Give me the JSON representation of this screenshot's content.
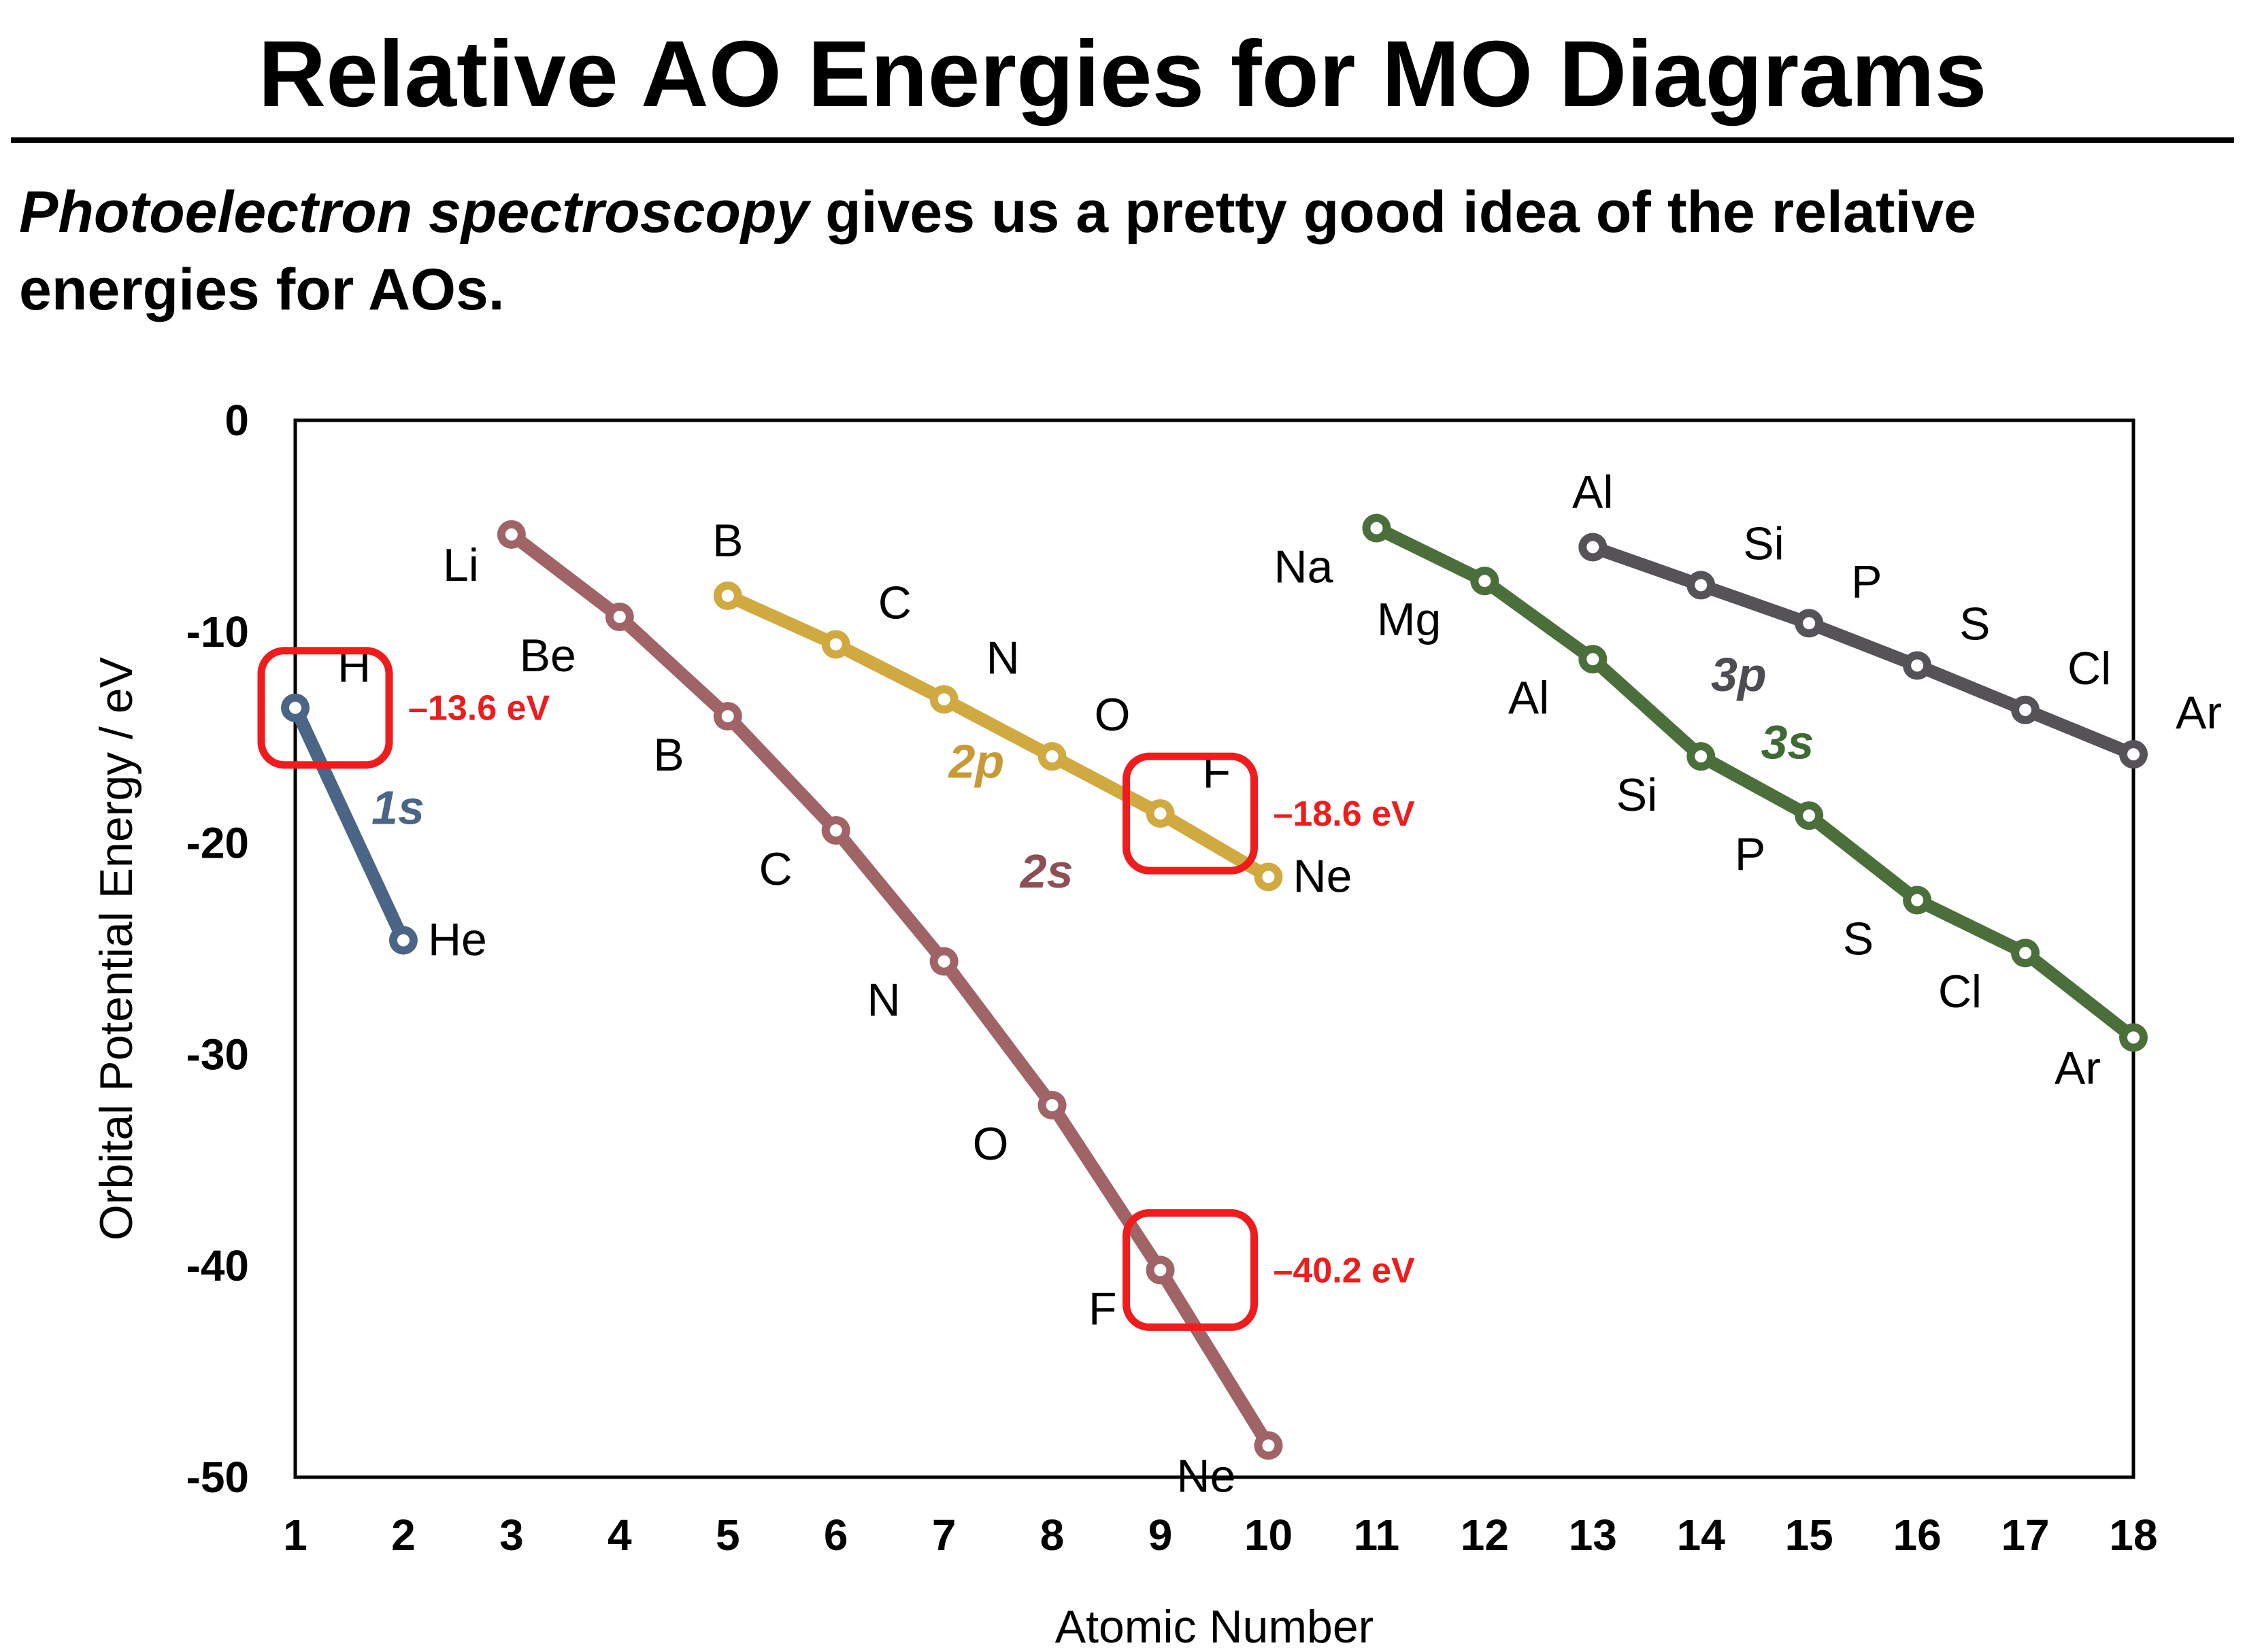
{
  "page": {
    "title": "Relative AO Energies for MO Diagrams",
    "intro_emphasis": "Photoelectron spectroscopy",
    "intro_rest": " gives us a pretty good idea of the relative energies for AOs."
  },
  "chart_data": {
    "type": "line",
    "xlabel": "Atomic Number",
    "ylabel": "Orbital Potential Energy / eV",
    "xlim": [
      1,
      18
    ],
    "ylim": [
      -50,
      0
    ],
    "xticks": [
      "1",
      "2",
      "3",
      "4",
      "5",
      "6",
      "7",
      "8",
      "9",
      "10",
      "11",
      "12",
      "13",
      "14",
      "15",
      "16",
      "17",
      "18"
    ],
    "yticks": [
      "0",
      "-10",
      "-20",
      "-30",
      "-40",
      "-50"
    ],
    "grid": false,
    "series": [
      {
        "name": "1s",
        "color": "#4a6585",
        "label_color": "#4a6585",
        "points": [
          {
            "el": "H",
            "x": 1,
            "y": -13.6,
            "pos": "ne"
          },
          {
            "el": "He",
            "x": 2,
            "y": -24.6,
            "pos": "e"
          }
        ]
      },
      {
        "name": "2s",
        "color": "#a06466",
        "label_color": "#8c4f55",
        "points": [
          {
            "el": "Li",
            "x": 3,
            "y": -5.4,
            "pos": "w"
          },
          {
            "el": "Be",
            "x": 4,
            "y": -9.3,
            "pos": "sw"
          },
          {
            "el": "B",
            "x": 5,
            "y": -14.0,
            "pos": "sw"
          },
          {
            "el": "C",
            "x": 6,
            "y": -19.4,
            "pos": "sw"
          },
          {
            "el": "N",
            "x": 7,
            "y": -25.6,
            "pos": "sw"
          },
          {
            "el": "O",
            "x": 8,
            "y": -32.4,
            "pos": "sw"
          },
          {
            "el": "F",
            "x": 9,
            "y": -40.2,
            "pos": "sw"
          },
          {
            "el": "Ne",
            "x": 10,
            "y": -48.5,
            "pos": "w"
          }
        ]
      },
      {
        "name": "2p",
        "color": "#d0aa40",
        "label_color": "#c89a35",
        "points": [
          {
            "el": "B",
            "x": 5,
            "y": -8.3,
            "pos": "n"
          },
          {
            "el": "C",
            "x": 6,
            "y": -10.6,
            "pos": "ne"
          },
          {
            "el": "N",
            "x": 7,
            "y": -13.2,
            "pos": "ne"
          },
          {
            "el": "O",
            "x": 8,
            "y": -15.9,
            "pos": "ne"
          },
          {
            "el": "F",
            "x": 9,
            "y": -18.6,
            "pos": "ne"
          },
          {
            "el": "Ne",
            "x": 10,
            "y": -21.6,
            "pos": "e"
          }
        ]
      },
      {
        "name": "3s",
        "color": "#4b6f3a",
        "label_color": "#3f6a35",
        "points": [
          {
            "el": "Na",
            "x": 11,
            "y": -5.1,
            "pos": "sw"
          },
          {
            "el": "Mg",
            "x": 12,
            "y": -7.6,
            "pos": "sw"
          },
          {
            "el": "Al",
            "x": 13,
            "y": -11.3,
            "pos": "sw"
          },
          {
            "el": "Si",
            "x": 14,
            "y": -15.9,
            "pos": "sw"
          },
          {
            "el": "P",
            "x": 15,
            "y": -18.7,
            "pos": "sw"
          },
          {
            "el": "S",
            "x": 16,
            "y": -22.7,
            "pos": "sw"
          },
          {
            "el": "Cl",
            "x": 17,
            "y": -25.2,
            "pos": "sw"
          },
          {
            "el": "Ar",
            "x": 18,
            "y": -29.2,
            "pos": "w"
          }
        ]
      },
      {
        "name": "3p",
        "color": "#555258",
        "label_color": "#4e4c52",
        "points": [
          {
            "el": "Al",
            "x": 13,
            "y": -6.0,
            "pos": "n"
          },
          {
            "el": "Si",
            "x": 14,
            "y": -7.8,
            "pos": "ne"
          },
          {
            "el": "P",
            "x": 15,
            "y": -9.6,
            "pos": "ne"
          },
          {
            "el": "S",
            "x": 16,
            "y": -11.6,
            "pos": "ne"
          },
          {
            "el": "Cl",
            "x": 17,
            "y": -13.7,
            "pos": "ne"
          },
          {
            "el": "Ar",
            "x": 18,
            "y": -15.8,
            "pos": "ne"
          }
        ]
      }
    ],
    "series_labels": [
      {
        "text": "1s",
        "series": "1s",
        "x": 1.95,
        "y": -19.1
      },
      {
        "text": "2s",
        "series": "2s",
        "x": 7.95,
        "y": -22.1
      },
      {
        "text": "2p",
        "series": "2p",
        "x": 7.3,
        "y": -16.9
      },
      {
        "text": "3s",
        "series": "3s",
        "x": 14.8,
        "y": -16.0
      },
      {
        "text": "3p",
        "series": "3p",
        "x": 14.35,
        "y": -12.8
      }
    ],
    "highlights": [
      {
        "text": "–13.6 eV",
        "x": 1,
        "y": -13.6
      },
      {
        "text": "–18.6 eV",
        "x": 9,
        "y": -18.6
      },
      {
        "text": "–40.2 eV",
        "x": 9,
        "y": -40.2
      }
    ],
    "highlight_color": "#ee1c1c"
  }
}
